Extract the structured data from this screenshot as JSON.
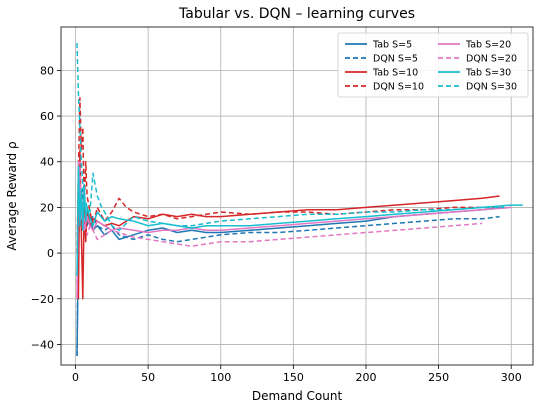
{
  "chart_data": {
    "type": "line",
    "title": "Tabular vs. DQN – learning curves",
    "xlabel": "Demand Count",
    "ylabel": "Average Reward ρ",
    "xlim": [
      -10,
      315
    ],
    "ylim": [
      -49,
      99
    ],
    "xticks": [
      0,
      50,
      100,
      150,
      200,
      250,
      300
    ],
    "yticks": [
      -40,
      -20,
      0,
      20,
      40,
      60,
      80
    ],
    "grid": true,
    "legend": {
      "placement": "top-right",
      "columns": 2
    },
    "series": [
      {
        "name": "Tab S=5",
        "color": "#1f77b4",
        "dashed": false,
        "x": [
          1,
          2,
          3,
          4,
          5,
          6,
          7,
          8,
          10,
          12,
          15,
          20,
          25,
          30,
          40,
          50,
          60,
          70,
          80,
          90,
          100,
          120,
          140,
          160,
          180,
          200,
          220,
          240,
          260,
          280,
          295
        ],
        "y": [
          -45,
          5,
          25,
          10,
          18,
          8,
          14,
          12,
          16,
          10,
          12,
          8,
          10,
          6,
          8,
          10,
          11,
          9,
          10,
          9,
          9,
          10,
          11,
          12,
          13,
          14,
          16,
          17,
          18,
          19,
          20
        ]
      },
      {
        "name": "DQN S=5",
        "color": "#1f77b4",
        "dashed": true,
        "x": [
          1,
          2,
          3,
          4,
          5,
          6,
          8,
          10,
          12,
          15,
          20,
          25,
          30,
          40,
          50,
          60,
          70,
          80,
          90,
          100,
          120,
          140,
          160,
          180,
          200,
          220,
          240,
          260,
          280,
          292
        ],
        "y": [
          -45,
          15,
          35,
          20,
          28,
          12,
          18,
          14,
          16,
          12,
          10,
          12,
          8,
          6,
          8,
          6,
          5,
          6,
          7,
          8,
          9,
          9,
          10,
          11,
          12,
          13,
          14,
          15,
          15,
          16
        ]
      },
      {
        "name": "Tab S=10",
        "color": "#d62728",
        "dashed": false,
        "x": [
          1,
          2,
          3,
          4,
          5,
          6,
          7,
          8,
          10,
          12,
          15,
          20,
          25,
          30,
          40,
          50,
          60,
          70,
          80,
          90,
          100,
          120,
          140,
          160,
          180,
          200,
          220,
          240,
          260,
          280,
          292
        ],
        "y": [
          -12,
          -20,
          45,
          10,
          -20,
          20,
          5,
          18,
          12,
          15,
          14,
          12,
          13,
          12,
          16,
          15,
          17,
          16,
          17,
          16,
          16,
          17,
          18,
          19,
          19,
          20,
          21,
          22,
          23,
          24,
          25
        ]
      },
      {
        "name": "DQN S=10",
        "color": "#d62728",
        "dashed": true,
        "x": [
          1,
          2,
          3,
          4,
          5,
          6,
          7,
          8,
          10,
          12,
          15,
          20,
          25,
          30,
          35,
          40,
          50,
          60,
          70,
          80,
          90,
          100,
          120,
          140,
          160,
          180,
          200,
          220,
          240,
          260,
          280,
          290
        ],
        "y": [
          0,
          35,
          68,
          45,
          55,
          20,
          40,
          25,
          18,
          12,
          20,
          14,
          18,
          24,
          20,
          18,
          16,
          17,
          15,
          16,
          17,
          18,
          17,
          18,
          18,
          17,
          18,
          19,
          19,
          20,
          20,
          20
        ]
      },
      {
        "name": "Tab S=20",
        "color": "#e377c2",
        "dashed": false,
        "x": [
          1,
          2,
          3,
          4,
          5,
          6,
          8,
          10,
          12,
          15,
          20,
          25,
          30,
          40,
          50,
          60,
          70,
          80,
          90,
          100,
          120,
          140,
          160,
          180,
          200,
          220,
          240,
          260,
          280,
          300
        ],
        "y": [
          -20,
          40,
          28,
          15,
          22,
          10,
          16,
          12,
          10,
          14,
          12,
          10,
          11,
          10,
          9,
          10,
          10,
          11,
          10,
          10,
          11,
          12,
          13,
          14,
          15,
          16,
          17,
          18,
          19,
          20
        ]
      },
      {
        "name": "DQN S=20",
        "color": "#e377c2",
        "dashed": true,
        "x": [
          1,
          2,
          3,
          4,
          5,
          6,
          8,
          10,
          12,
          15,
          20,
          25,
          30,
          40,
          50,
          60,
          70,
          80,
          90,
          100,
          120,
          140,
          160,
          180,
          200,
          220,
          240,
          260,
          280
        ],
        "y": [
          -10,
          25,
          40,
          20,
          10,
          15,
          8,
          12,
          10,
          6,
          8,
          10,
          9,
          7,
          6,
          5,
          4,
          3,
          4,
          5,
          5,
          6,
          7,
          8,
          9,
          10,
          11,
          12,
          13
        ]
      },
      {
        "name": "Tab S=30",
        "color": "#17becf",
        "dashed": false,
        "x": [
          1,
          2,
          3,
          4,
          5,
          6,
          7,
          8,
          10,
          12,
          15,
          20,
          25,
          30,
          40,
          50,
          60,
          70,
          80,
          90,
          100,
          120,
          140,
          160,
          180,
          200,
          220,
          240,
          260,
          280,
          300,
          308
        ],
        "y": [
          -10,
          38,
          12,
          28,
          10,
          30,
          14,
          20,
          15,
          12,
          18,
          14,
          16,
          15,
          14,
          12,
          13,
          12,
          11,
          12,
          12,
          12,
          13,
          14,
          15,
          16,
          17,
          18,
          19,
          20,
          21,
          21
        ]
      },
      {
        "name": "DQN S=30",
        "color": "#17becf",
        "dashed": true,
        "x": [
          1,
          2,
          3,
          4,
          5,
          6,
          8,
          10,
          12,
          15,
          18,
          20,
          25,
          30,
          40,
          50,
          60,
          70,
          80,
          90,
          100,
          120,
          140,
          160,
          180,
          200,
          220,
          240,
          260,
          280,
          295
        ],
        "y": [
          92,
          70,
          55,
          40,
          30,
          25,
          20,
          18,
          35,
          25,
          20,
          18,
          12,
          10,
          16,
          14,
          13,
          12,
          12,
          13,
          14,
          15,
          16,
          17,
          17,
          18,
          18,
          19,
          19,
          20,
          20
        ]
      }
    ]
  }
}
